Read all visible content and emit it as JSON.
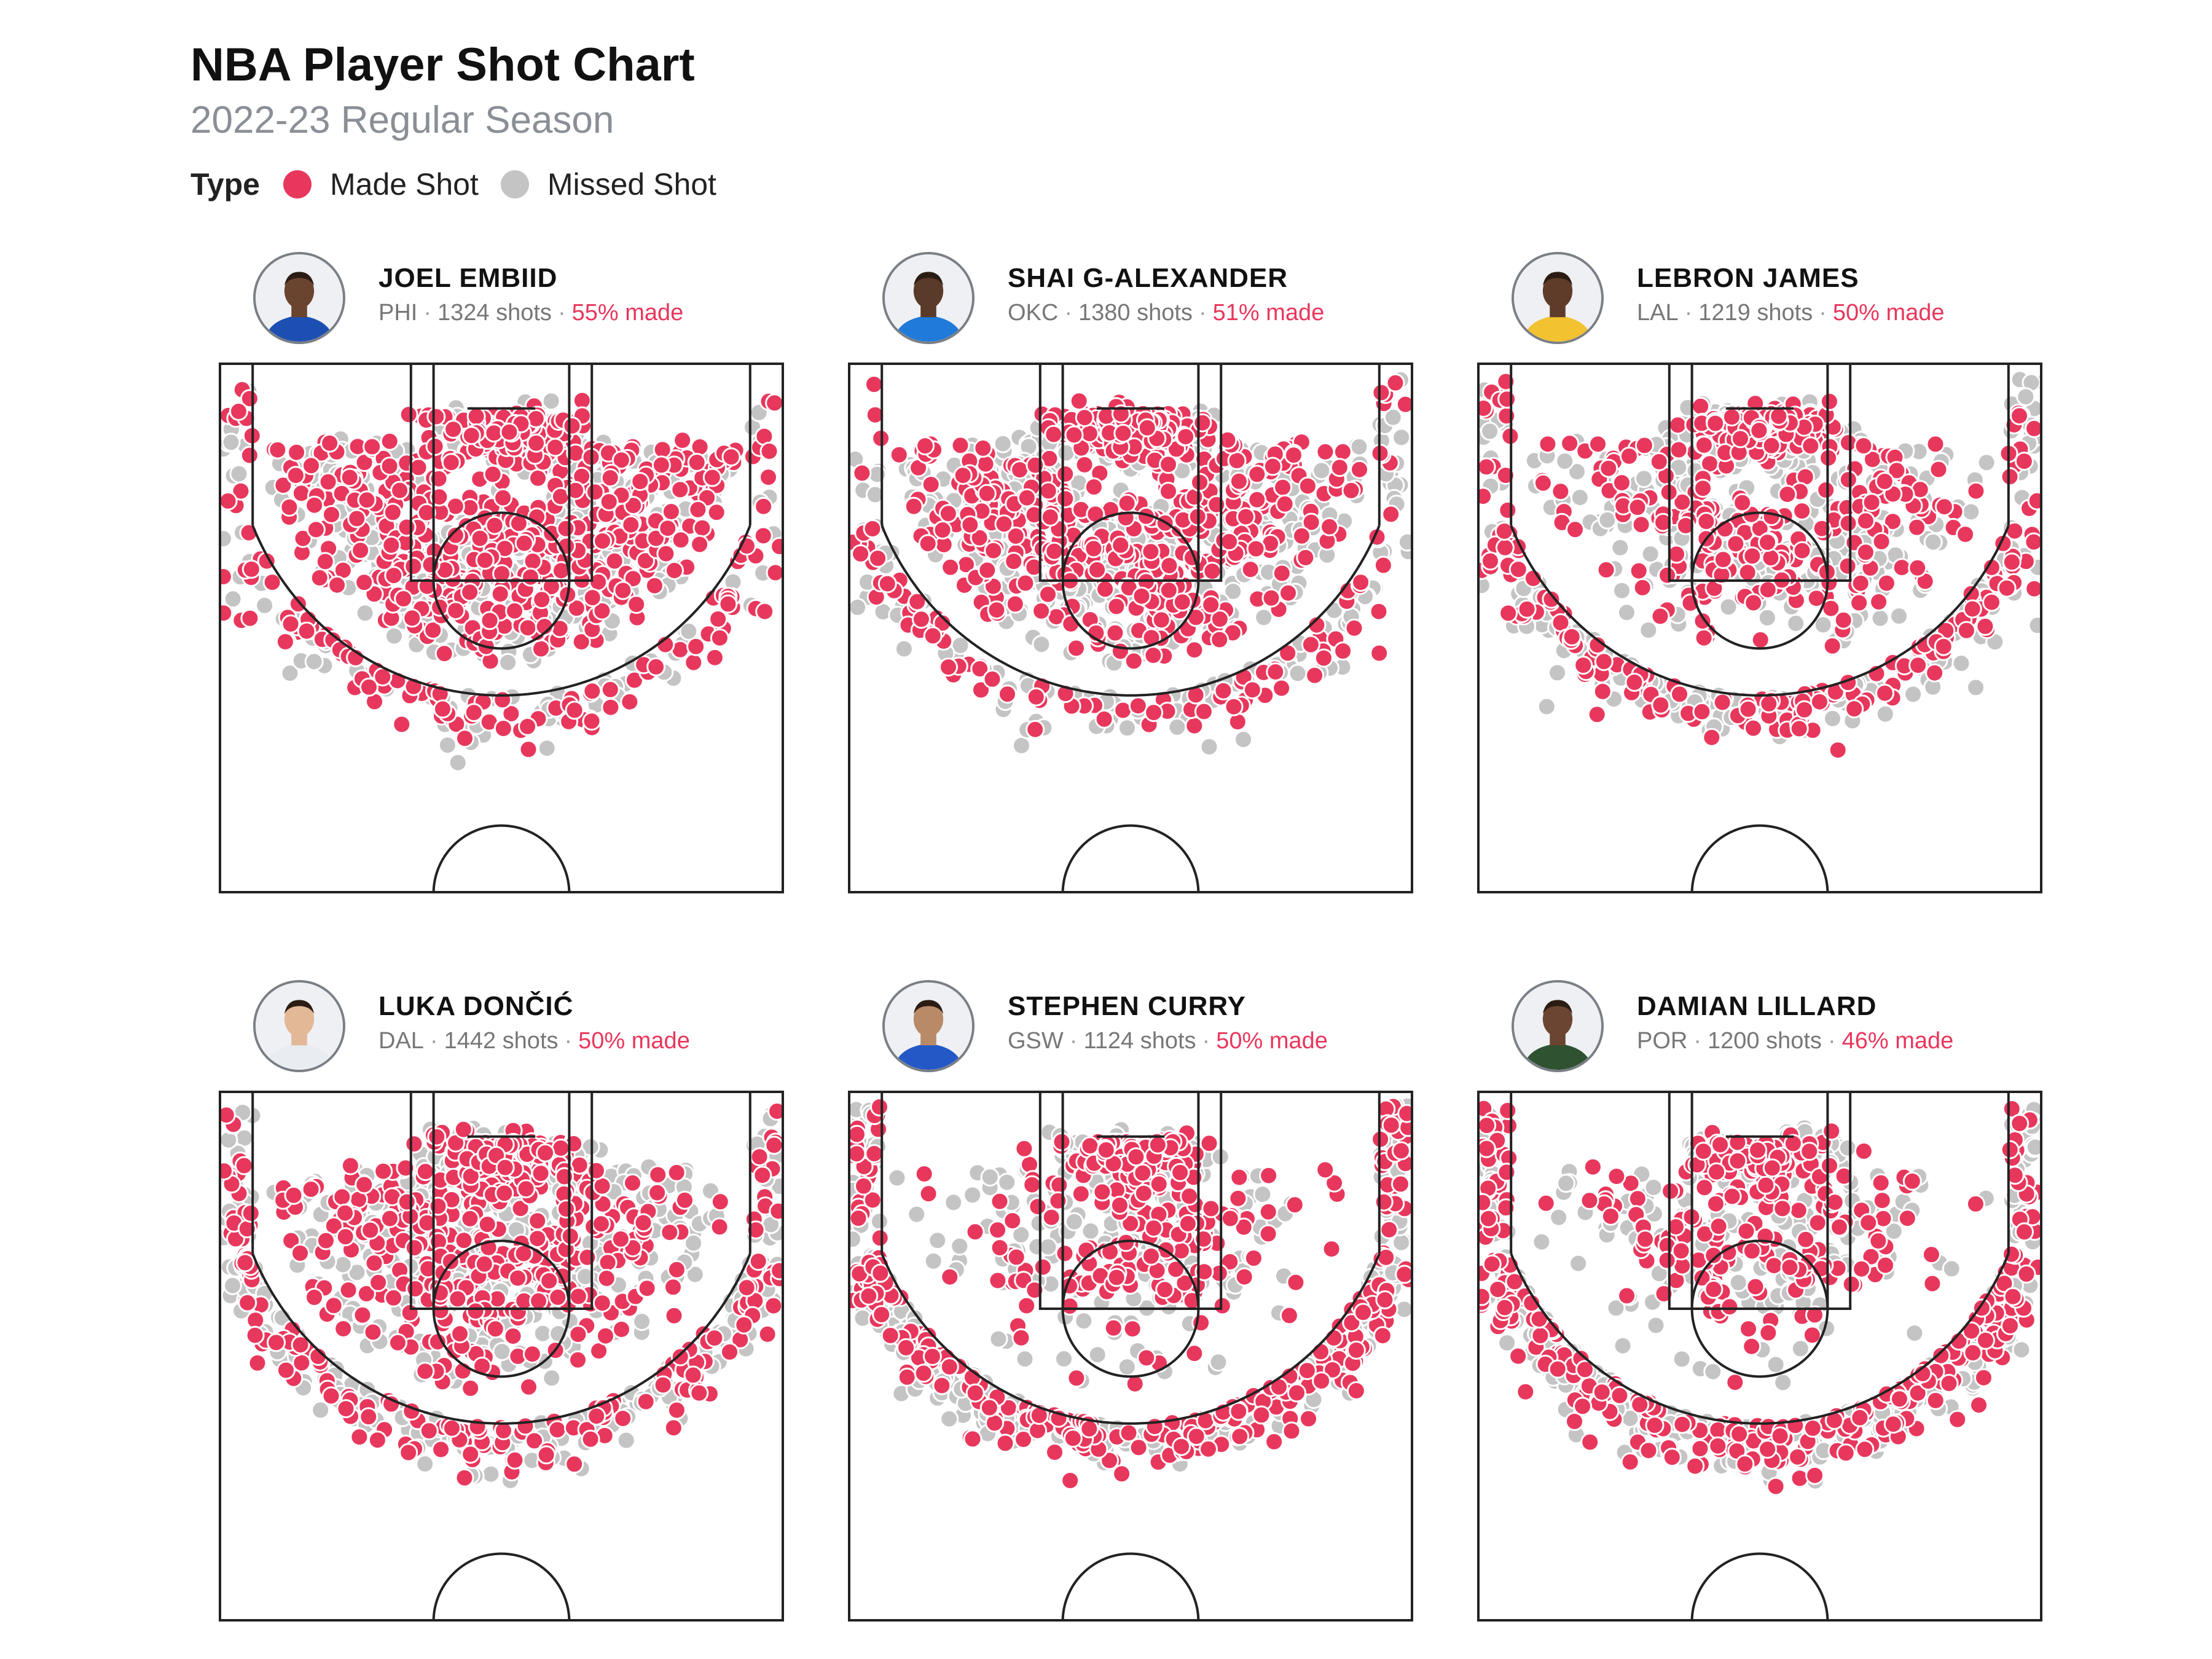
{
  "title": "NBA Player Shot Chart",
  "subtitle": "2022-23 Regular Season",
  "legend": {
    "title": "Type",
    "items": [
      {
        "label": "Made Shot",
        "color": "#e8375c"
      },
      {
        "label": "Missed Shot",
        "color": "#c4c4c4"
      }
    ]
  },
  "colors": {
    "made": "#e8375c",
    "missed": "#c4c4c4",
    "court_line": "#222222"
  },
  "chart_data": {
    "type": "scatter",
    "subtype": "basketball half-court shot chart",
    "grid": false,
    "legend_position": "top-left",
    "panels": [
      {
        "name": "JOEL EMBIID",
        "team": "PHI",
        "shots": 1324,
        "shots_label": "1324 shots",
        "made_pct": 55,
        "made_label": "55% made",
        "jersey": "#1d4fb3",
        "skin": "#6b4430",
        "profile": "interior",
        "seed": 11
      },
      {
        "name": "SHAI G-ALEXANDER",
        "team": "OKC",
        "shots": 1380,
        "shots_label": "1380 shots",
        "made_pct": 51,
        "made_label": "51% made",
        "jersey": "#1f7ad9",
        "skin": "#5a3a28",
        "profile": "midrange",
        "seed": 23
      },
      {
        "name": "LEBRON JAMES",
        "team": "LAL",
        "shots": 1219,
        "shots_label": "1219 shots",
        "made_pct": 50,
        "made_label": "50% made",
        "jersey": "#f2c230",
        "skin": "#5e3c29",
        "profile": "balanced",
        "seed": 37
      },
      {
        "name": "LUKA DONČIĆ",
        "team": "DAL",
        "shots": 1442,
        "shots_label": "1442 shots",
        "made_pct": 50,
        "made_label": "50% made",
        "jersey": "#e9edf2",
        "skin": "#e3b896",
        "profile": "luka",
        "seed": 41
      },
      {
        "name": "STEPHEN CURRY",
        "team": "GSW",
        "shots": 1124,
        "shots_label": "1124 shots",
        "made_pct": 50,
        "made_label": "50% made",
        "jersey": "#2458c6",
        "skin": "#b98a68",
        "profile": "three",
        "seed": 53
      },
      {
        "name": "DAMIAN LILLARD",
        "team": "POR",
        "shots": 1200,
        "shots_label": "1200 shots",
        "made_pct": 46,
        "made_label": "46% made",
        "jersey": "#2f5230",
        "skin": "#6b4532",
        "profile": "deep",
        "seed": 67
      }
    ]
  }
}
